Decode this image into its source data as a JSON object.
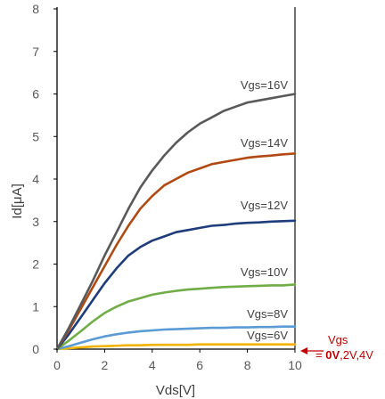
{
  "chart_data": {
    "type": "line",
    "xlabel": "Vds[V]",
    "ylabel": "Id[μA]",
    "xlim": [
      0,
      10
    ],
    "ylim": [
      0,
      8
    ],
    "xticks": [
      "0",
      "2",
      "4",
      "6",
      "8",
      "10"
    ],
    "yticks": [
      "0",
      "1",
      "2",
      "3",
      "4",
      "5",
      "6",
      "7",
      "8"
    ],
    "grid": false,
    "x": [
      0,
      0.5,
      1,
      1.5,
      2,
      2.5,
      3,
      3.5,
      4,
      4.5,
      5,
      5.5,
      6,
      6.5,
      7,
      7.5,
      8,
      8.5,
      9,
      9.5,
      10
    ],
    "series": [
      {
        "name": "Vgs=16V",
        "color": "#595959",
        "values": [
          0,
          0.5,
          1.05,
          1.6,
          2.2,
          2.75,
          3.3,
          3.8,
          4.2,
          4.55,
          4.85,
          5.1,
          5.3,
          5.45,
          5.6,
          5.7,
          5.8,
          5.85,
          5.9,
          5.95,
          6.0
        ]
      },
      {
        "name": "Vgs=14V",
        "color": "#b14a12",
        "values": [
          0,
          0.45,
          0.95,
          1.45,
          1.95,
          2.45,
          2.9,
          3.3,
          3.6,
          3.85,
          4.0,
          4.15,
          4.25,
          4.35,
          4.4,
          4.45,
          4.5,
          4.53,
          4.55,
          4.58,
          4.6
        ]
      },
      {
        "name": "Vgs=12V",
        "color": "#1f3d7a",
        "values": [
          0,
          0.35,
          0.75,
          1.15,
          1.55,
          1.9,
          2.2,
          2.4,
          2.55,
          2.65,
          2.75,
          2.8,
          2.85,
          2.9,
          2.92,
          2.95,
          2.97,
          2.98,
          3.0,
          3.01,
          3.02
        ]
      },
      {
        "name": "Vgs=10V",
        "color": "#70ad47",
        "values": [
          0,
          0.2,
          0.42,
          0.65,
          0.85,
          1.0,
          1.12,
          1.2,
          1.28,
          1.33,
          1.37,
          1.4,
          1.42,
          1.44,
          1.46,
          1.47,
          1.48,
          1.49,
          1.5,
          1.5,
          1.52
        ]
      },
      {
        "name": "Vgs=8V",
        "color": "#5b9bd5",
        "values": [
          0,
          0.07,
          0.15,
          0.23,
          0.3,
          0.35,
          0.39,
          0.42,
          0.44,
          0.46,
          0.47,
          0.48,
          0.49,
          0.5,
          0.5,
          0.51,
          0.51,
          0.52,
          0.52,
          0.53,
          0.53
        ]
      },
      {
        "name": "Vgs=6V",
        "color": "#f0b400",
        "values": [
          0,
          0.02,
          0.04,
          0.06,
          0.07,
          0.08,
          0.09,
          0.09,
          0.1,
          0.1,
          0.1,
          0.1,
          0.11,
          0.11,
          0.11,
          0.11,
          0.11,
          0.11,
          0.11,
          0.11,
          0.11
        ]
      }
    ],
    "series_labels": [
      "Vgs=16V",
      "Vgs=14V",
      "Vgs=12V",
      "Vgs=10V",
      "Vgs=8V",
      "Vgs=6V"
    ],
    "annotation": {
      "line1": "Vgs",
      "line2_prefix": "= ",
      "line2_bold": "0V",
      "line2_rest": ",2V,4V",
      "color": "#c00000"
    }
  }
}
